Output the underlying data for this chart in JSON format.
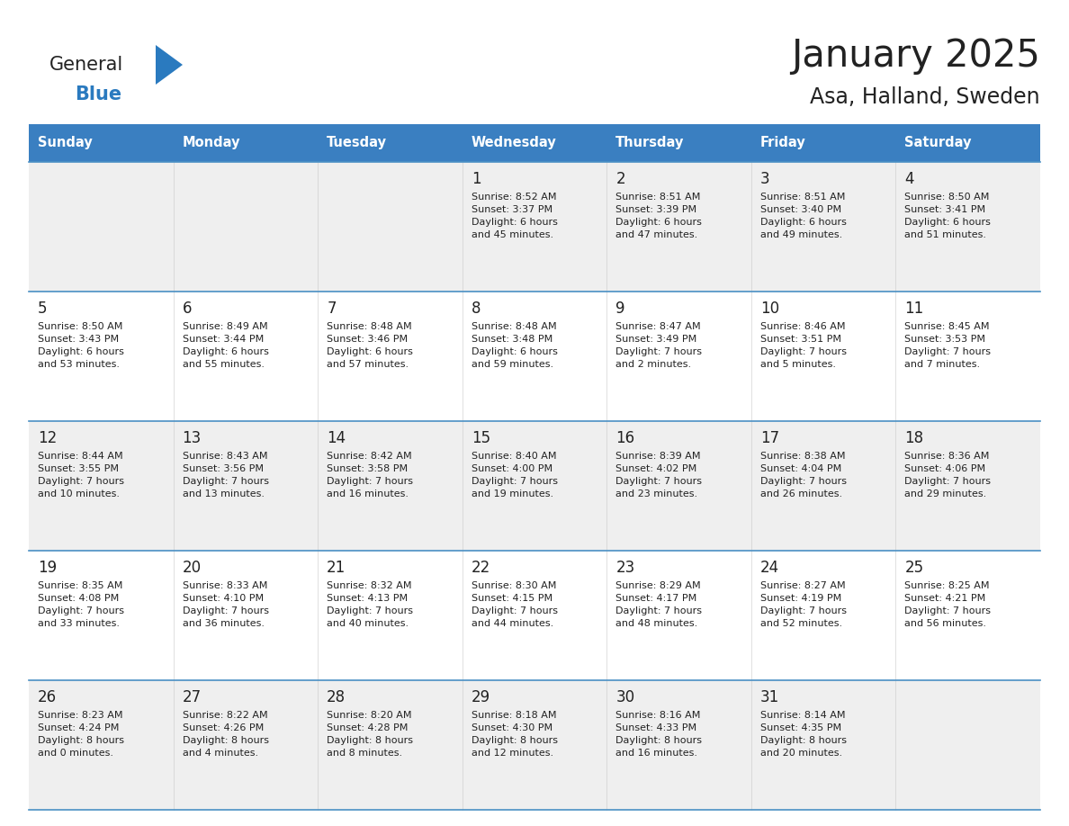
{
  "title": "January 2025",
  "subtitle": "Asa, Halland, Sweden",
  "header_color": "#3a7fc1",
  "header_text_color": "#ffffff",
  "cell_bg_gray": "#efefef",
  "cell_bg_white": "#ffffff",
  "row_line_color": "#4a90c4",
  "text_color": "#222222",
  "days_of_week": [
    "Sunday",
    "Monday",
    "Tuesday",
    "Wednesday",
    "Thursday",
    "Friday",
    "Saturday"
  ],
  "calendar": [
    [
      {
        "day": "",
        "info": ""
      },
      {
        "day": "",
        "info": ""
      },
      {
        "day": "",
        "info": ""
      },
      {
        "day": "1",
        "info": "Sunrise: 8:52 AM\nSunset: 3:37 PM\nDaylight: 6 hours\nand 45 minutes."
      },
      {
        "day": "2",
        "info": "Sunrise: 8:51 AM\nSunset: 3:39 PM\nDaylight: 6 hours\nand 47 minutes."
      },
      {
        "day": "3",
        "info": "Sunrise: 8:51 AM\nSunset: 3:40 PM\nDaylight: 6 hours\nand 49 minutes."
      },
      {
        "day": "4",
        "info": "Sunrise: 8:50 AM\nSunset: 3:41 PM\nDaylight: 6 hours\nand 51 minutes."
      }
    ],
    [
      {
        "day": "5",
        "info": "Sunrise: 8:50 AM\nSunset: 3:43 PM\nDaylight: 6 hours\nand 53 minutes."
      },
      {
        "day": "6",
        "info": "Sunrise: 8:49 AM\nSunset: 3:44 PM\nDaylight: 6 hours\nand 55 minutes."
      },
      {
        "day": "7",
        "info": "Sunrise: 8:48 AM\nSunset: 3:46 PM\nDaylight: 6 hours\nand 57 minutes."
      },
      {
        "day": "8",
        "info": "Sunrise: 8:48 AM\nSunset: 3:48 PM\nDaylight: 6 hours\nand 59 minutes."
      },
      {
        "day": "9",
        "info": "Sunrise: 8:47 AM\nSunset: 3:49 PM\nDaylight: 7 hours\nand 2 minutes."
      },
      {
        "day": "10",
        "info": "Sunrise: 8:46 AM\nSunset: 3:51 PM\nDaylight: 7 hours\nand 5 minutes."
      },
      {
        "day": "11",
        "info": "Sunrise: 8:45 AM\nSunset: 3:53 PM\nDaylight: 7 hours\nand 7 minutes."
      }
    ],
    [
      {
        "day": "12",
        "info": "Sunrise: 8:44 AM\nSunset: 3:55 PM\nDaylight: 7 hours\nand 10 minutes."
      },
      {
        "day": "13",
        "info": "Sunrise: 8:43 AM\nSunset: 3:56 PM\nDaylight: 7 hours\nand 13 minutes."
      },
      {
        "day": "14",
        "info": "Sunrise: 8:42 AM\nSunset: 3:58 PM\nDaylight: 7 hours\nand 16 minutes."
      },
      {
        "day": "15",
        "info": "Sunrise: 8:40 AM\nSunset: 4:00 PM\nDaylight: 7 hours\nand 19 minutes."
      },
      {
        "day": "16",
        "info": "Sunrise: 8:39 AM\nSunset: 4:02 PM\nDaylight: 7 hours\nand 23 minutes."
      },
      {
        "day": "17",
        "info": "Sunrise: 8:38 AM\nSunset: 4:04 PM\nDaylight: 7 hours\nand 26 minutes."
      },
      {
        "day": "18",
        "info": "Sunrise: 8:36 AM\nSunset: 4:06 PM\nDaylight: 7 hours\nand 29 minutes."
      }
    ],
    [
      {
        "day": "19",
        "info": "Sunrise: 8:35 AM\nSunset: 4:08 PM\nDaylight: 7 hours\nand 33 minutes."
      },
      {
        "day": "20",
        "info": "Sunrise: 8:33 AM\nSunset: 4:10 PM\nDaylight: 7 hours\nand 36 minutes."
      },
      {
        "day": "21",
        "info": "Sunrise: 8:32 AM\nSunset: 4:13 PM\nDaylight: 7 hours\nand 40 minutes."
      },
      {
        "day": "22",
        "info": "Sunrise: 8:30 AM\nSunset: 4:15 PM\nDaylight: 7 hours\nand 44 minutes."
      },
      {
        "day": "23",
        "info": "Sunrise: 8:29 AM\nSunset: 4:17 PM\nDaylight: 7 hours\nand 48 minutes."
      },
      {
        "day": "24",
        "info": "Sunrise: 8:27 AM\nSunset: 4:19 PM\nDaylight: 7 hours\nand 52 minutes."
      },
      {
        "day": "25",
        "info": "Sunrise: 8:25 AM\nSunset: 4:21 PM\nDaylight: 7 hours\nand 56 minutes."
      }
    ],
    [
      {
        "day": "26",
        "info": "Sunrise: 8:23 AM\nSunset: 4:24 PM\nDaylight: 8 hours\nand 0 minutes."
      },
      {
        "day": "27",
        "info": "Sunrise: 8:22 AM\nSunset: 4:26 PM\nDaylight: 8 hours\nand 4 minutes."
      },
      {
        "day": "28",
        "info": "Sunrise: 8:20 AM\nSunset: 4:28 PM\nDaylight: 8 hours\nand 8 minutes."
      },
      {
        "day": "29",
        "info": "Sunrise: 8:18 AM\nSunset: 4:30 PM\nDaylight: 8 hours\nand 12 minutes."
      },
      {
        "day": "30",
        "info": "Sunrise: 8:16 AM\nSunset: 4:33 PM\nDaylight: 8 hours\nand 16 minutes."
      },
      {
        "day": "31",
        "info": "Sunrise: 8:14 AM\nSunset: 4:35 PM\nDaylight: 8 hours\nand 20 minutes."
      },
      {
        "day": "",
        "info": ""
      }
    ]
  ],
  "logo_general_color": "#222222",
  "logo_blue_color": "#2a7abf",
  "logo_triangle_color": "#2a7abf"
}
